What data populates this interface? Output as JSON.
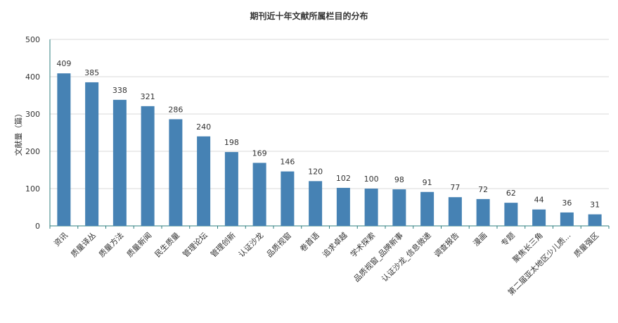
{
  "chart_data": {
    "type": "bar",
    "title": "期刊近十年文献所属栏目的分布",
    "ylabel": "文献量（篇）",
    "xlabel": "",
    "ylim": [
      0,
      500
    ],
    "yticks": [
      0,
      100,
      200,
      300,
      400,
      500
    ],
    "grid": true,
    "colors": {
      "bar": "#4682b4",
      "grid": "#d9d9d9",
      "axis": "#2f7f7f"
    },
    "categories": [
      "资讯",
      "质量译丛",
      "质量方法",
      "质量新闻",
      "民生质量",
      "管理论坛",
      "管理创新",
      "认证沙龙",
      "品质视窗",
      "卷首语",
      "追求卓越",
      "学术探索",
      "品质视窗_品牌新事",
      "认证沙龙_信息微递",
      "调查报告",
      "漫画",
      "专题",
      "聚焦长三角",
      "第二届亚太地区少儿质...",
      "质量强区"
    ],
    "values": [
      409,
      385,
      338,
      321,
      286,
      240,
      198,
      169,
      146,
      120,
      102,
      100,
      98,
      91,
      77,
      72,
      62,
      44,
      36,
      31
    ]
  }
}
